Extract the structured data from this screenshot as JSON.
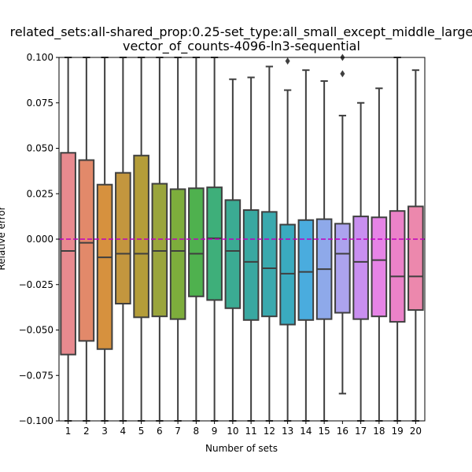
{
  "chart_data": {
    "type": "box",
    "title_line1": "related_sets:all-shared_prop:0.25-set_type:all_small_except_middle_large",
    "title_line2": "vector_of_counts-4096-ln3-sequential",
    "xlabel": "Number of sets",
    "ylabel": "Relative error",
    "ylim": [
      -0.1,
      0.1
    ],
    "yticks": [
      -0.1,
      -0.075,
      -0.05,
      -0.025,
      0.0,
      0.025,
      0.05,
      0.075,
      0.1
    ],
    "ytick_labels": [
      "−0.100",
      "−0.075",
      "−0.050",
      "−0.025",
      "0.000",
      "0.025",
      "0.050",
      "0.075",
      "0.100"
    ],
    "categories": [
      "1",
      "2",
      "3",
      "4",
      "5",
      "6",
      "7",
      "8",
      "9",
      "10",
      "11",
      "12",
      "13",
      "14",
      "15",
      "16",
      "17",
      "18",
      "19",
      "20"
    ],
    "reference_line": {
      "y": 0.0,
      "color": "#c000c0",
      "style": "dashed"
    },
    "boxes": [
      {
        "q1": -0.0635,
        "median": -0.0065,
        "q3": 0.0475,
        "whisker_low": -0.1,
        "whisker_high": 0.1,
        "color": "#e88a8f"
      },
      {
        "q1": -0.056,
        "median": -0.002,
        "q3": 0.0435,
        "whisker_low": -0.1,
        "whisker_high": 0.1,
        "color": "#e2896a"
      },
      {
        "q1": -0.0605,
        "median": -0.01,
        "q3": 0.03,
        "whisker_low": -0.1,
        "whisker_high": 0.1,
        "color": "#d6913e"
      },
      {
        "q1": -0.0355,
        "median": -0.008,
        "q3": 0.0365,
        "whisker_low": -0.1,
        "whisker_high": 0.1,
        "color": "#c3963e"
      },
      {
        "q1": -0.043,
        "median": -0.008,
        "q3": 0.046,
        "whisker_low": -0.1,
        "whisker_high": 0.1,
        "color": "#b49d39"
      },
      {
        "q1": -0.0425,
        "median": -0.0065,
        "q3": 0.0305,
        "whisker_low": -0.1,
        "whisker_high": 0.1,
        "color": "#9aa53c"
      },
      {
        "q1": -0.044,
        "median": -0.0065,
        "q3": 0.0275,
        "whisker_low": -0.1,
        "whisker_high": 0.1,
        "color": "#7dad3c"
      },
      {
        "q1": -0.0315,
        "median": -0.008,
        "q3": 0.028,
        "whisker_low": -0.1,
        "whisker_high": 0.1,
        "color": "#4fb14e"
      },
      {
        "q1": -0.0335,
        "median": 0.0005,
        "q3": 0.0285,
        "whisker_low": -0.1,
        "whisker_high": 0.1,
        "color": "#3eaf7a"
      },
      {
        "q1": -0.038,
        "median": -0.0065,
        "q3": 0.0215,
        "whisker_low": -0.1,
        "whisker_high": 0.088,
        "color": "#3bab93"
      },
      {
        "q1": -0.0445,
        "median": -0.0125,
        "q3": 0.016,
        "whisker_low": -0.1,
        "whisker_high": 0.089,
        "color": "#39a8a1"
      },
      {
        "q1": -0.0425,
        "median": -0.016,
        "q3": 0.015,
        "whisker_low": -0.1,
        "whisker_high": 0.095,
        "color": "#3aa9ae"
      },
      {
        "q1": -0.047,
        "median": -0.019,
        "q3": 0.008,
        "whisker_low": -0.1,
        "whisker_high": 0.082,
        "color": "#3aabbf",
        "outliers": [
          0.098
        ]
      },
      {
        "q1": -0.0445,
        "median": -0.018,
        "q3": 0.0105,
        "whisker_low": -0.1,
        "whisker_high": 0.093,
        "color": "#4aacde"
      },
      {
        "q1": -0.044,
        "median": -0.0165,
        "q3": 0.011,
        "whisker_low": -0.1,
        "whisker_high": 0.087,
        "color": "#8ea9ea"
      },
      {
        "q1": -0.0405,
        "median": -0.008,
        "q3": 0.0085,
        "whisker_low": -0.085,
        "whisker_high": 0.068,
        "color": "#aca3ee",
        "outliers": [
          0.091,
          0.1
        ]
      },
      {
        "q1": -0.044,
        "median": -0.0125,
        "q3": 0.0125,
        "whisker_low": -0.1,
        "whisker_high": 0.075,
        "color": "#c98ff0"
      },
      {
        "q1": -0.0425,
        "median": -0.0115,
        "q3": 0.012,
        "whisker_low": -0.1,
        "whisker_high": 0.083,
        "color": "#e684e6"
      },
      {
        "q1": -0.0455,
        "median": -0.0205,
        "q3": 0.0155,
        "whisker_low": -0.1,
        "whisker_high": 0.1,
        "color": "#eb82c9"
      },
      {
        "q1": -0.039,
        "median": -0.0205,
        "q3": 0.018,
        "whisker_low": -0.1,
        "whisker_high": 0.093,
        "color": "#ec88ad"
      }
    ]
  }
}
